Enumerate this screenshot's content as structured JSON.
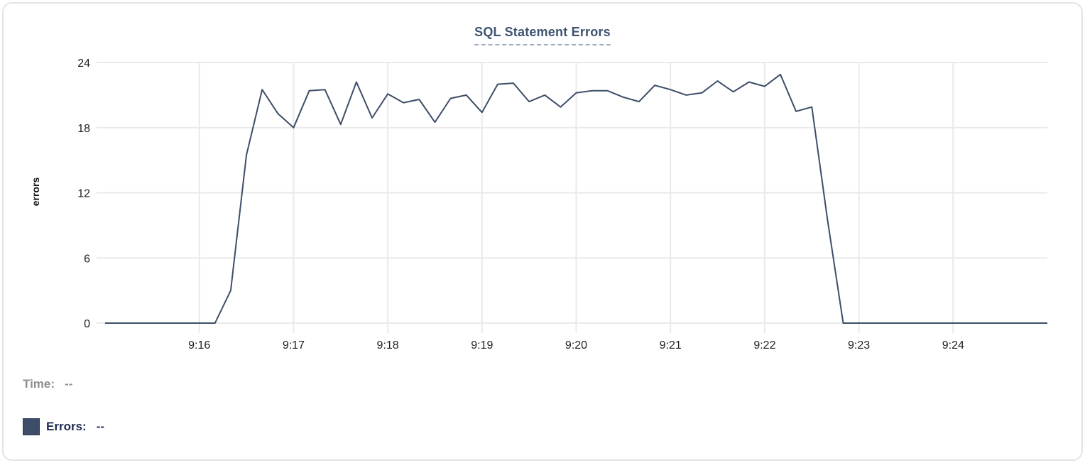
{
  "colors": {
    "line": "#3d4e68",
    "grid": "#eaeaea",
    "title": "#3e5370",
    "swatch": "#3e4d67",
    "tick_text": "#1f1f1f"
  },
  "chart_data": {
    "type": "line",
    "title": "SQL Statement Errors",
    "xlabel": "",
    "ylabel": "errors",
    "ylim": [
      0,
      24
    ],
    "y_ticks": [
      0,
      6,
      12,
      18,
      24
    ],
    "x_ticks": [
      "9:16",
      "9:17",
      "9:18",
      "9:19",
      "9:20",
      "9:21",
      "9:22",
      "9:23",
      "9:24"
    ],
    "x_start": "9:15:00",
    "x_end": "9:25:00",
    "sample_interval_seconds": 10,
    "grid": true,
    "legend_position": "bottom",
    "series": [
      {
        "name": "Errors",
        "color": "#3d4e68",
        "values": [
          0,
          0,
          0,
          0,
          0,
          0,
          0,
          0,
          3,
          15.5,
          21.5,
          19.3,
          18,
          21.4,
          21.5,
          18.3,
          22.2,
          18.9,
          21.1,
          20.3,
          20.6,
          18.5,
          20.7,
          21,
          19.4,
          22,
          22.1,
          20.4,
          21,
          19.9,
          21.2,
          21.4,
          21.4,
          20.8,
          20.4,
          21.9,
          21.5,
          21,
          21.2,
          22.3,
          21.3,
          22.2,
          21.8,
          22.9,
          19.5,
          19.9,
          9.5,
          0,
          0,
          0,
          0,
          0,
          0,
          0,
          0,
          0,
          0,
          0,
          0,
          0,
          0
        ]
      }
    ]
  },
  "readout": {
    "time_label": "Time:",
    "time_value": "--",
    "errors_label": "Errors:",
    "errors_value": "--"
  }
}
